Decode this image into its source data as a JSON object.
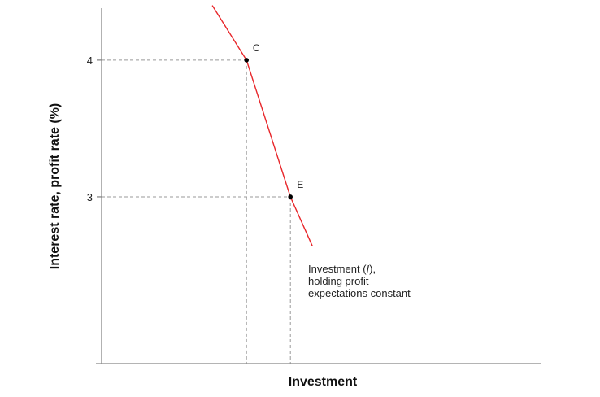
{
  "chart_data": {
    "type": "line",
    "xlabel": "Investment",
    "ylabel": "Interest rate, profit rate (%)",
    "ylim": [
      1.78,
      4.38
    ],
    "yticks": [
      {
        "value": 4,
        "label": "4"
      },
      {
        "value": 3,
        "label": "3"
      }
    ],
    "grid": false,
    "series": [
      {
        "name": "Investment (I), holding profit expectations constant",
        "color": "#e8262a",
        "label_lines": {
          "line1_prefix": "Investment (",
          "line1_italic": "I",
          "line1_suffix": "),",
          "line2": "holding profit",
          "line3": "expectations constant"
        },
        "x": [
          2.52,
          3.3,
          4.3,
          4.8
        ],
        "y": [
          4.4,
          4,
          3,
          2.64
        ]
      }
    ],
    "points": [
      {
        "label": "C",
        "x": 3.3,
        "y": 4
      },
      {
        "label": "E",
        "x": 4.3,
        "y": 3
      }
    ],
    "xlim": [
      0,
      10
    ]
  }
}
